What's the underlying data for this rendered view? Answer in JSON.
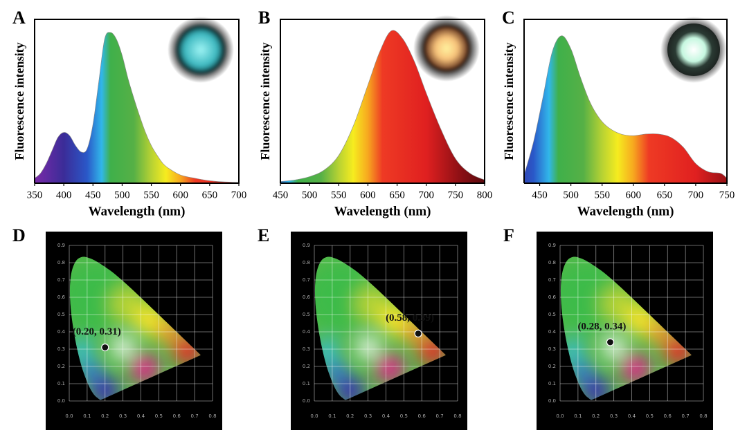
{
  "chart_data": [
    {
      "panel": "A",
      "type": "area",
      "xlabel": "Wavelength (nm)",
      "ylabel": "Fluorescence intensity",
      "x": [
        350,
        360,
        370,
        380,
        390,
        400,
        410,
        420,
        430,
        440,
        450,
        460,
        470,
        480,
        490,
        500,
        510,
        520,
        530,
        540,
        550,
        560,
        570,
        580,
        600,
        625,
        650,
        675,
        700
      ],
      "values": [
        0.03,
        0.06,
        0.12,
        0.2,
        0.28,
        0.31,
        0.29,
        0.23,
        0.19,
        0.21,
        0.36,
        0.62,
        0.88,
        0.92,
        0.88,
        0.78,
        0.64,
        0.52,
        0.41,
        0.31,
        0.23,
        0.17,
        0.12,
        0.09,
        0.05,
        0.03,
        0.015,
        0.008,
        0.005
      ],
      "xlim": [
        350,
        700
      ],
      "xticks": [
        350,
        400,
        450,
        500,
        550,
        600,
        650,
        700
      ],
      "ylim": [
        0,
        1
      ]
    },
    {
      "panel": "B",
      "type": "area",
      "xlabel": "Wavelength (nm)",
      "ylabel": "Fluorescence intensity",
      "x": [
        450,
        475,
        500,
        525,
        550,
        575,
        600,
        620,
        640,
        660,
        680,
        700,
        725,
        750,
        775,
        800
      ],
      "values": [
        0.01,
        0.02,
        0.04,
        0.08,
        0.17,
        0.35,
        0.6,
        0.8,
        0.93,
        0.88,
        0.74,
        0.55,
        0.33,
        0.15,
        0.06,
        0.02
      ],
      "xlim": [
        450,
        800
      ],
      "xticks": [
        450,
        500,
        550,
        600,
        650,
        700,
        750,
        800
      ],
      "ylim": [
        0,
        1
      ]
    },
    {
      "panel": "C",
      "type": "area",
      "xlabel": "Wavelength (nm)",
      "ylabel": "Fluorescence intensity",
      "x": [
        425,
        440,
        455,
        470,
        485,
        500,
        515,
        530,
        545,
        560,
        580,
        600,
        620,
        640,
        660,
        680,
        700,
        720,
        740,
        750
      ],
      "values": [
        0.05,
        0.25,
        0.52,
        0.8,
        0.9,
        0.82,
        0.65,
        0.5,
        0.4,
        0.34,
        0.3,
        0.29,
        0.3,
        0.3,
        0.28,
        0.22,
        0.12,
        0.07,
        0.06,
        0.03
      ],
      "xlim": [
        425,
        750
      ],
      "xticks": [
        450,
        500,
        550,
        600,
        650,
        700,
        750
      ],
      "ylim": [
        0,
        1
      ]
    },
    {
      "panel": "D",
      "type": "scatter",
      "x": [
        0.2
      ],
      "values": [
        0.31
      ],
      "value_labels": [
        "(0.20, 0.31)"
      ],
      "grid": true,
      "xlim": [
        0,
        0.8
      ],
      "ylim": [
        0,
        0.9
      ],
      "xticks": [
        {
          "value": 0,
          "label": "0.0"
        },
        {
          "value": 0.1,
          "label": "0.1"
        },
        {
          "value": 0.2,
          "label": "0.2"
        },
        {
          "value": 0.3,
          "label": "0.3"
        },
        {
          "value": 0.4,
          "label": "0.4"
        },
        {
          "value": 0.5,
          "label": "0.5"
        },
        {
          "value": 0.6,
          "label": "0.6"
        },
        {
          "value": 0.7,
          "label": "0.7"
        },
        {
          "value": 0.8,
          "label": "0.8"
        }
      ],
      "yticks": [
        {
          "value": 0,
          "label": "0.0"
        },
        {
          "value": 0.1,
          "label": "0.1"
        },
        {
          "value": 0.2,
          "label": "0.2"
        },
        {
          "value": 0.3,
          "label": "0.3"
        },
        {
          "value": 0.4,
          "label": "0.4"
        },
        {
          "value": 0.5,
          "label": "0.5"
        },
        {
          "value": 0.6,
          "label": "0.6"
        },
        {
          "value": 0.7,
          "label": "0.7"
        },
        {
          "value": 0.8,
          "label": "0.8"
        },
        {
          "value": 0.9,
          "label": "0.9"
        }
      ]
    },
    {
      "panel": "E",
      "type": "scatter",
      "x": [
        0.58
      ],
      "values": [
        0.39
      ],
      "value_labels": [
        "(0.58, 0.39)"
      ],
      "grid": true,
      "xlim": [
        0,
        0.8
      ],
      "ylim": [
        0,
        0.9
      ],
      "xticks": [
        {
          "value": 0,
          "label": "0.0"
        },
        {
          "value": 0.1,
          "label": "0.1"
        },
        {
          "value": 0.2,
          "label": "0.2"
        },
        {
          "value": 0.3,
          "label": "0.3"
        },
        {
          "value": 0.4,
          "label": "0.4"
        },
        {
          "value": 0.5,
          "label": "0.5"
        },
        {
          "value": 0.6,
          "label": "0.6"
        },
        {
          "value": 0.7,
          "label": "0.7"
        },
        {
          "value": 0.8,
          "label": "0.8"
        }
      ],
      "yticks": [
        {
          "value": 0,
          "label": "0.0"
        },
        {
          "value": 0.1,
          "label": "0.1"
        },
        {
          "value": 0.2,
          "label": "0.2"
        },
        {
          "value": 0.3,
          "label": "0.3"
        },
        {
          "value": 0.4,
          "label": "0.4"
        },
        {
          "value": 0.5,
          "label": "0.5"
        },
        {
          "value": 0.6,
          "label": "0.6"
        },
        {
          "value": 0.7,
          "label": "0.7"
        },
        {
          "value": 0.8,
          "label": "0.8"
        },
        {
          "value": 0.9,
          "label": "0.9"
        }
      ]
    },
    {
      "panel": "F",
      "type": "scatter",
      "x": [
        0.28
      ],
      "values": [
        0.34
      ],
      "value_labels": [
        "(0.28, 0.34)"
      ],
      "grid": true,
      "xlim": [
        0,
        0.8
      ],
      "ylim": [
        0,
        0.9
      ],
      "xticks": [
        {
          "value": 0,
          "label": "0.0"
        },
        {
          "value": 0.1,
          "label": "0.1"
        },
        {
          "value": 0.2,
          "label": "0.2"
        },
        {
          "value": 0.3,
          "label": "0.3"
        },
        {
          "value": 0.4,
          "label": "0.4"
        },
        {
          "value": 0.5,
          "label": "0.5"
        },
        {
          "value": 0.6,
          "label": "0.6"
        },
        {
          "value": 0.7,
          "label": "0.7"
        },
        {
          "value": 0.8,
          "label": "0.8"
        }
      ],
      "yticks": [
        {
          "value": 0,
          "label": "0.0"
        },
        {
          "value": 0.1,
          "label": "0.1"
        },
        {
          "value": 0.2,
          "label": "0.2"
        },
        {
          "value": 0.3,
          "label": "0.3"
        },
        {
          "value": 0.4,
          "label": "0.4"
        },
        {
          "value": 0.5,
          "label": "0.5"
        },
        {
          "value": 0.6,
          "label": "0.6"
        },
        {
          "value": 0.7,
          "label": "0.7"
        },
        {
          "value": 0.8,
          "label": "0.8"
        },
        {
          "value": 0.9,
          "label": "0.9"
        }
      ]
    }
  ]
}
